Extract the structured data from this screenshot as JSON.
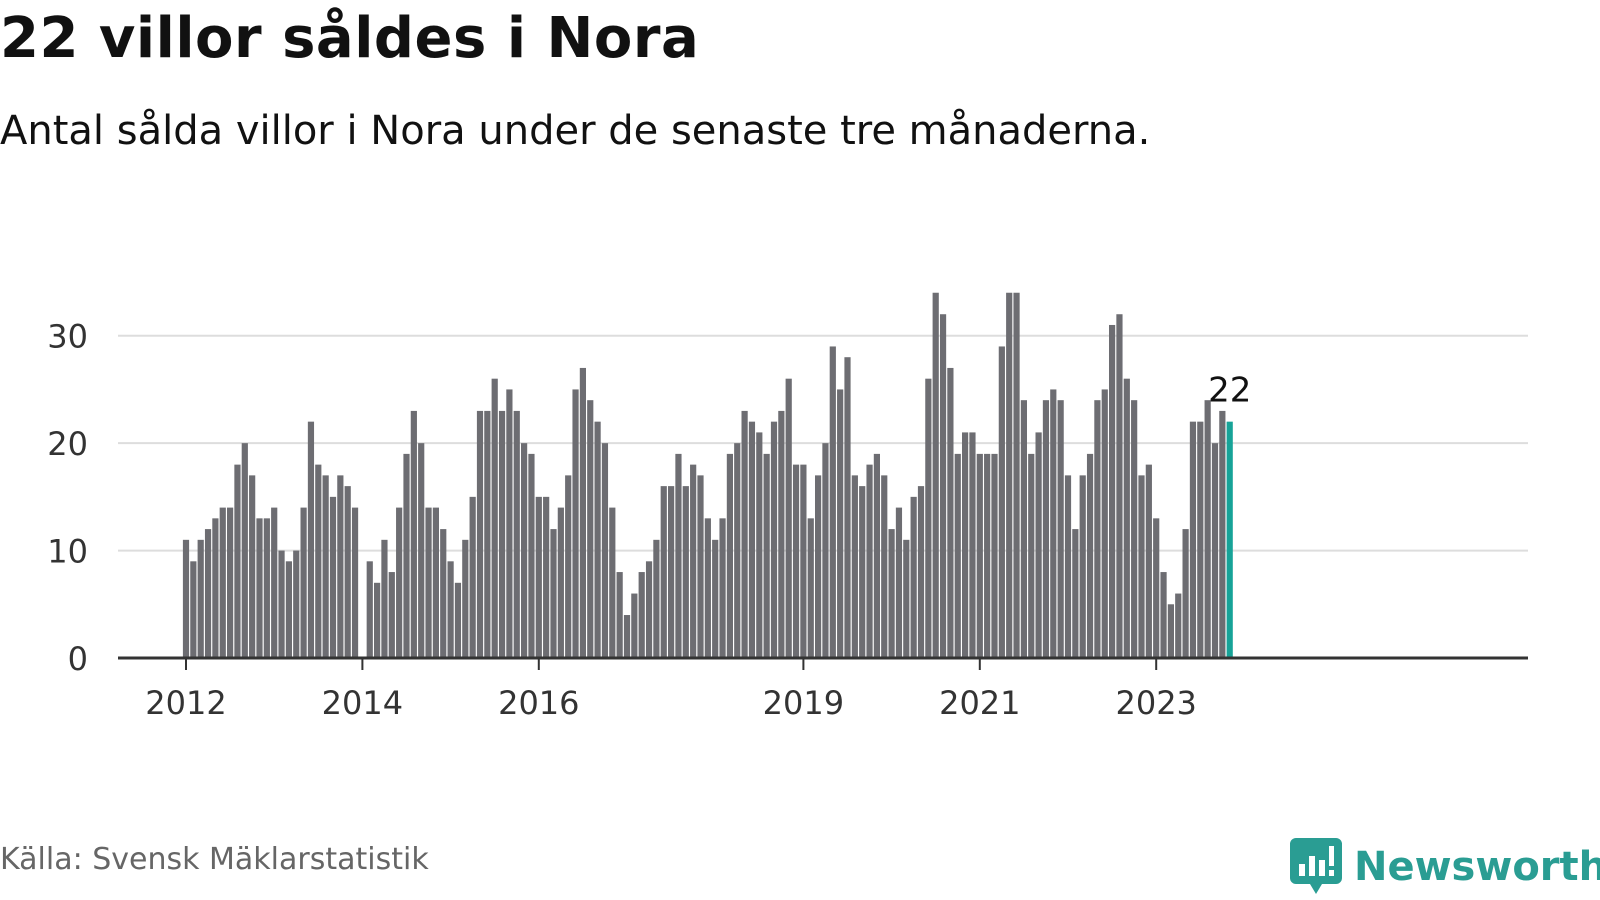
{
  "header": {
    "title": "22 villor såldes i Nora",
    "subtitle": "Antal sålda villor i Nora under de senaste tre månaderna."
  },
  "footer": {
    "source": "Källa: Svensk Mäklarstatistik",
    "brand": "Newsworthy",
    "brand_icon": "bar-chart-logo-icon"
  },
  "colors": {
    "bar": "#6d6d72",
    "highlight": "#17a398",
    "grid": "#dddddd",
    "axis": "#333333",
    "brand": "#2a9d93"
  },
  "chart_data": {
    "type": "bar",
    "title": "22 villor såldes i Nora",
    "xlabel": "",
    "ylabel": "",
    "ylim": [
      0,
      35
    ],
    "yticks": [
      0,
      10,
      20,
      30
    ],
    "grid": true,
    "x_tick_labels": [
      {
        "label": "2012",
        "month": "2012-01"
      },
      {
        "label": "2014",
        "month": "2014-01"
      },
      {
        "label": "2016",
        "month": "2016-01"
      },
      {
        "label": "2019",
        "month": "2019-01"
      },
      {
        "label": "2021",
        "month": "2021-01"
      },
      {
        "label": "2023",
        "month": "2023-01"
      }
    ],
    "highlight_label": "22",
    "start_month": "2012-01",
    "values": [
      11,
      9,
      11,
      12,
      13,
      14,
      14,
      18,
      20,
      17,
      13,
      13,
      14,
      10,
      9,
      10,
      14,
      22,
      18,
      17,
      15,
      17,
      16,
      14,
      null,
      9,
      7,
      11,
      8,
      14,
      19,
      23,
      20,
      14,
      14,
      12,
      9,
      7,
      11,
      15,
      23,
      23,
      26,
      23,
      25,
      23,
      20,
      19,
      15,
      15,
      12,
      14,
      17,
      25,
      27,
      24,
      22,
      20,
      14,
      8,
      4,
      6,
      8,
      9,
      11,
      16,
      16,
      19,
      16,
      18,
      17,
      13,
      11,
      13,
      19,
      20,
      23,
      22,
      21,
      19,
      22,
      23,
      26,
      18,
      18,
      13,
      17,
      20,
      29,
      25,
      28,
      17,
      16,
      18,
      19,
      17,
      12,
      14,
      11,
      15,
      16,
      26,
      34,
      32,
      27,
      19,
      21,
      21,
      19,
      19,
      19,
      29,
      34,
      34,
      24,
      19,
      21,
      24,
      25,
      24,
      17,
      12,
      17,
      19,
      24,
      25,
      31,
      32,
      26,
      24,
      17,
      18,
      13,
      8,
      5,
      6,
      12,
      22,
      22,
      24,
      20,
      23,
      22
    ]
  }
}
